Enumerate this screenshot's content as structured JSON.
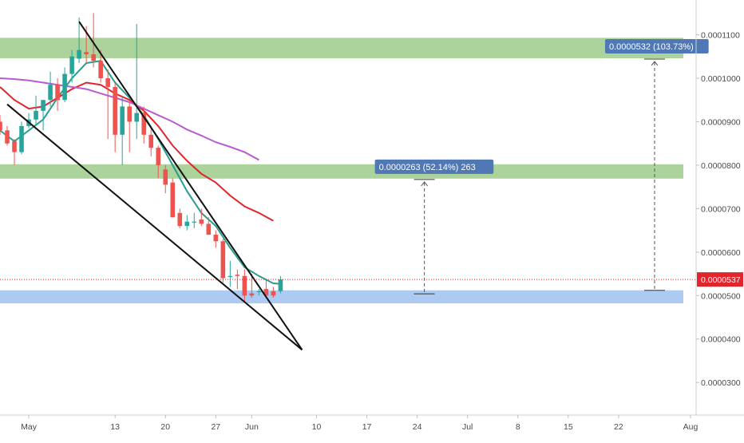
{
  "chart_data": {
    "type": "candlestick",
    "y_scale": "linear",
    "ylim": [
      2.25e-05,
      0.000118
    ],
    "xlim_day": [
      -4,
      91
    ],
    "day0": "May 1",
    "x_ticks": [
      {
        "label": "May",
        "day": 0
      },
      {
        "label": "13",
        "day": 12
      },
      {
        "label": "20",
        "day": 19
      },
      {
        "label": "27",
        "day": 26
      },
      {
        "label": "Jun",
        "day": 31
      },
      {
        "label": "10",
        "day": 40
      },
      {
        "label": "17",
        "day": 47
      },
      {
        "label": "24",
        "day": 54
      },
      {
        "label": "Jul",
        "day": 61
      },
      {
        "label": "8",
        "day": 68
      },
      {
        "label": "15",
        "day": 75
      },
      {
        "label": "22",
        "day": 82
      },
      {
        "label": "Aug",
        "day": 92
      }
    ],
    "y_ticks": [
      {
        "label": "0.0001100",
        "value": 0.00011
      },
      {
        "label": "0.0001000",
        "value": 0.0001
      },
      {
        "label": "0.0000900",
        "value": 9e-05
      },
      {
        "label": "0.0000800",
        "value": 8e-05
      },
      {
        "label": "0.0000700",
        "value": 7e-05
      },
      {
        "label": "0.0000600",
        "value": 6e-05
      },
      {
        "label": "0.0000500",
        "value": 5e-05
      },
      {
        "label": "0.0000400",
        "value": 4e-05
      },
      {
        "label": "0.0000300",
        "value": 3e-05
      }
    ],
    "candles": [
      {
        "day": -4,
        "o": 9e-05,
        "h": 9.15e-05,
        "l": 8.7e-05,
        "c": 8.8e-05
      },
      {
        "day": -3,
        "o": 8.8e-05,
        "h": 8.9e-05,
        "l": 8.45e-05,
        "c": 8.5e-05
      },
      {
        "day": -2,
        "o": 8.55e-05,
        "h": 8.6e-05,
        "l": 8e-05,
        "c": 8.3e-05
      },
      {
        "day": -1,
        "o": 8.3e-05,
        "h": 9e-05,
        "l": 8.25e-05,
        "c": 8.9e-05
      },
      {
        "day": 0,
        "o": 8.9e-05,
        "h": 9.2e-05,
        "l": 8.85e-05,
        "c": 9.05e-05
      },
      {
        "day": 1,
        "o": 9.05e-05,
        "h": 9.6e-05,
        "l": 8.95e-05,
        "c": 9.25e-05
      },
      {
        "day": 2,
        "o": 9.25e-05,
        "h": 9.5e-05,
        "l": 8.8e-05,
        "c": 9.5e-05
      },
      {
        "day": 3,
        "o": 9.5e-05,
        "h": 0.0001015,
        "l": 9.35e-05,
        "c": 9.85e-05
      },
      {
        "day": 4,
        "o": 9.85e-05,
        "h": 0.0001,
        "l": 9.25e-05,
        "c": 9.5e-05
      },
      {
        "day": 5,
        "o": 9.5e-05,
        "h": 0.0001025,
        "l": 9.45e-05,
        "c": 0.000101
      },
      {
        "day": 6,
        "o": 0.000101,
        "h": 0.0001065,
        "l": 9.9e-05,
        "c": 0.000105
      },
      {
        "day": 7,
        "o": 0.0001045,
        "h": 0.000114,
        "l": 0.0001035,
        "c": 0.0001065
      },
      {
        "day": 8,
        "o": 0.000106,
        "h": 0.000112,
        "l": 0.0001035,
        "c": 0.0001055
      },
      {
        "day": 9,
        "o": 0.0001055,
        "h": 0.000115,
        "l": 0.0001025,
        "c": 0.000104
      },
      {
        "day": 10,
        "o": 0.000104,
        "h": 0.0001065,
        "l": 9.9e-05,
        "c": 0.0001
      },
      {
        "day": 11,
        "o": 0.0001,
        "h": 0.000102,
        "l": 8.6e-05,
        "c": 9.8e-05
      },
      {
        "day": 12,
        "o": 9.8e-05,
        "h": 9.9e-05,
        "l": 8.3e-05,
        "c": 8.7e-05
      },
      {
        "day": 13,
        "o": 8.7e-05,
        "h": 9.6e-05,
        "l": 8e-05,
        "c": 9.35e-05
      },
      {
        "day": 14,
        "o": 9.35e-05,
        "h": 9.45e-05,
        "l": 8.3e-05,
        "c": 9e-05
      },
      {
        "day": 15,
        "o": 9e-05,
        "h": 0.0001125,
        "l": 8.6e-05,
        "c": 9.2e-05
      },
      {
        "day": 16,
        "o": 9.2e-05,
        "h": 9.35e-05,
        "l": 8.5e-05,
        "c": 8.7e-05
      },
      {
        "day": 17,
        "o": 8.7e-05,
        "h": 8.9e-05,
        "l": 8.2e-05,
        "c": 8.4e-05
      },
      {
        "day": 18,
        "o": 8.4e-05,
        "h": 8.45e-05,
        "l": 7.7e-05,
        "c": 8e-05
      },
      {
        "day": 19,
        "o": 7.9e-05,
        "h": 8e-05,
        "l": 7.35e-05,
        "c": 7.55e-05
      },
      {
        "day": 20,
        "o": 7.6e-05,
        "h": 7.7e-05,
        "l": 6.8e-05,
        "c": 6.8e-05
      },
      {
        "day": 21,
        "o": 6.9e-05,
        "h": 7e-05,
        "l": 6.55e-05,
        "c": 6.6e-05
      },
      {
        "day": 22,
        "o": 6.6e-05,
        "h": 6.85e-05,
        "l": 6.5e-05,
        "c": 6.7e-05
      },
      {
        "day": 23,
        "o": 6.7e-05,
        "h": 6.9e-05,
        "l": 6.55e-05,
        "c": 6.7e-05
      },
      {
        "day": 24,
        "o": 6.75e-05,
        "h": 7e-05,
        "l": 6.6e-05,
        "c": 6.65e-05
      },
      {
        "day": 25,
        "o": 6.65e-05,
        "h": 6.8e-05,
        "l": 6.4e-05,
        "c": 6.4e-05
      },
      {
        "day": 26,
        "o": 6.4e-05,
        "h": 6.5e-05,
        "l": 6.1e-05,
        "c": 6.25e-05
      },
      {
        "day": 27,
        "o": 6.25e-05,
        "h": 6.3e-05,
        "l": 5.3e-05,
        "c": 5.4e-05
      },
      {
        "day": 28,
        "o": 5.45e-05,
        "h": 5.8e-05,
        "l": 5.2e-05,
        "c": 5.45e-05
      },
      {
        "day": 29,
        "o": 5.48e-05,
        "h": 5.6e-05,
        "l": 5.15e-05,
        "c": 5.45e-05
      },
      {
        "day": 30,
        "o": 5.45e-05,
        "h": 5.6e-05,
        "l": 4.85e-05,
        "c": 5e-05
      },
      {
        "day": 31,
        "o": 5.05e-05,
        "h": 5.5e-05,
        "l": 4.95e-05,
        "c": 5e-05
      },
      {
        "day": 32,
        "o": 5.1e-05,
        "h": 5.15e-05,
        "l": 5e-05,
        "c": 5.1e-05
      },
      {
        "day": 33,
        "o": 5.15e-05,
        "h": 5.35e-05,
        "l": 5e-05,
        "c": 5e-05
      },
      {
        "day": 34,
        "o": 5.1e-05,
        "h": 5.2e-05,
        "l": 4.95e-05,
        "c": 5e-05
      },
      {
        "day": 35,
        "o": 5.1e-05,
        "h": 5.45e-05,
        "l": 5.05e-05,
        "c": 5.37e-05
      }
    ],
    "moving_averages": [
      {
        "color": "#2a9d8f",
        "points": [
          [
            -4,
            8.8e-05
          ],
          [
            -2,
            8.55e-05
          ],
          [
            0,
            8.8e-05
          ],
          [
            2,
            9.05e-05
          ],
          [
            4,
            9.55e-05
          ],
          [
            6,
            0.0001
          ],
          [
            8,
            0.0001035
          ],
          [
            10,
            0.000104
          ],
          [
            12,
            9.9e-05
          ],
          [
            14,
            9.55e-05
          ],
          [
            16,
            9.15e-05
          ],
          [
            18,
            8.6e-05
          ],
          [
            20,
            8e-05
          ],
          [
            22,
            7.4e-05
          ],
          [
            24,
            6.9e-05
          ],
          [
            26,
            6.6e-05
          ],
          [
            28,
            6.1e-05
          ],
          [
            30,
            5.65e-05
          ],
          [
            32,
            5.45e-05
          ],
          [
            34,
            5.28e-05
          ],
          [
            35,
            5.27e-05
          ]
        ]
      },
      {
        "color": "#e0262c",
        "points": [
          [
            -4,
            9.8e-05
          ],
          [
            -2,
            9.5e-05
          ],
          [
            0,
            9.3e-05
          ],
          [
            2,
            9.35e-05
          ],
          [
            4,
            9.55e-05
          ],
          [
            6,
            9.75e-05
          ],
          [
            8,
            9.9e-05
          ],
          [
            10,
            9.85e-05
          ],
          [
            12,
            9.65e-05
          ],
          [
            14,
            9.5e-05
          ],
          [
            16,
            9.25e-05
          ],
          [
            18,
            8.9e-05
          ],
          [
            20,
            8.45e-05
          ],
          [
            22,
            8.1e-05
          ],
          [
            24,
            7.8e-05
          ],
          [
            26,
            7.6e-05
          ],
          [
            28,
            7.3e-05
          ],
          [
            30,
            7.05e-05
          ],
          [
            32,
            6.9e-05
          ],
          [
            34,
            6.72e-05
          ]
        ]
      },
      {
        "color": "#b75bd0",
        "points": [
          [
            -4,
            0.0001
          ],
          [
            -2,
            9.98e-05
          ],
          [
            0,
            9.95e-05
          ],
          [
            2,
            9.9e-05
          ],
          [
            4,
            9.85e-05
          ],
          [
            6,
            9.8e-05
          ],
          [
            8,
            9.75e-05
          ],
          [
            10,
            9.65e-05
          ],
          [
            12,
            9.55e-05
          ],
          [
            14,
            9.45e-05
          ],
          [
            16,
            9.3e-05
          ],
          [
            18,
            9.15e-05
          ],
          [
            20,
            9e-05
          ],
          [
            22,
            8.82e-05
          ],
          [
            24,
            8.68e-05
          ],
          [
            26,
            8.53e-05
          ],
          [
            28,
            8.42e-05
          ],
          [
            30,
            8.3e-05
          ],
          [
            32,
            8.12e-05
          ]
        ]
      }
    ],
    "trendlines": [
      {
        "from": [
          7,
          0.000113
        ],
        "to": [
          38,
          3.75e-05
        ]
      },
      {
        "from": [
          -3,
          9.4e-05
        ],
        "to": [
          38,
          3.75e-05
        ]
      }
    ],
    "zones": [
      {
        "color": "#8fc47a",
        "day_from": -4,
        "day_to": 91,
        "y_from": 0.0001046,
        "y_to": 0.0001093
      },
      {
        "color": "#8fc47a",
        "day_from": -4,
        "day_to": 91,
        "y_from": 7.69e-05,
        "y_to": 8.02e-05
      },
      {
        "color": "#90b8ee",
        "day_from": -4,
        "day_to": 91,
        "y_from": 4.82e-05,
        "y_to": 5.12e-05
      }
    ],
    "measures": [
      {
        "label": "0.0000263 (52.14%) 263",
        "day": 55,
        "y_from": 5.04e-05,
        "y_to": 7.67e-05
      },
      {
        "label": "0.0000532 (103.73%)",
        "day": 87,
        "y_from": 5.12e-05,
        "y_to": 0.0001044
      }
    ],
    "current_price": {
      "label": "0.0000537",
      "value": 5.37e-05,
      "color": "#e0262c"
    },
    "colors": {
      "up": "#26a69a",
      "down": "#ef5350",
      "axis_text": "#4a4a4a",
      "measure_label": "#4f78b5"
    }
  }
}
